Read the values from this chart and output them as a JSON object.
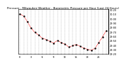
{
  "title": "Pressure - Milwaukee Weather - Barometric Pressure per Hour (Last 24 Hours)",
  "background_color": "#ffffff",
  "plot_bg_color": "#ffffff",
  "grid_color": "#888888",
  "line_color": "#ff0000",
  "marker_color": "#000000",
  "hours": [
    0,
    1,
    2,
    3,
    4,
    5,
    6,
    7,
    8,
    9,
    10,
    11,
    12,
    13,
    14,
    15,
    16,
    17,
    18,
    19,
    20,
    21,
    22,
    23
  ],
  "pressure": [
    30.1,
    30.05,
    29.92,
    29.78,
    29.68,
    29.62,
    29.55,
    29.52,
    29.48,
    29.44,
    29.5,
    29.45,
    29.42,
    29.35,
    29.38,
    29.41,
    29.37,
    29.33,
    29.3,
    29.28,
    29.32,
    29.45,
    29.58,
    29.72
  ],
  "ylim_min": 29.2,
  "ylim_max": 30.2,
  "ytick_step": 0.1,
  "title_fontsize": 3.0,
  "tick_fontsize": 2.5,
  "xtick_every": 3
}
